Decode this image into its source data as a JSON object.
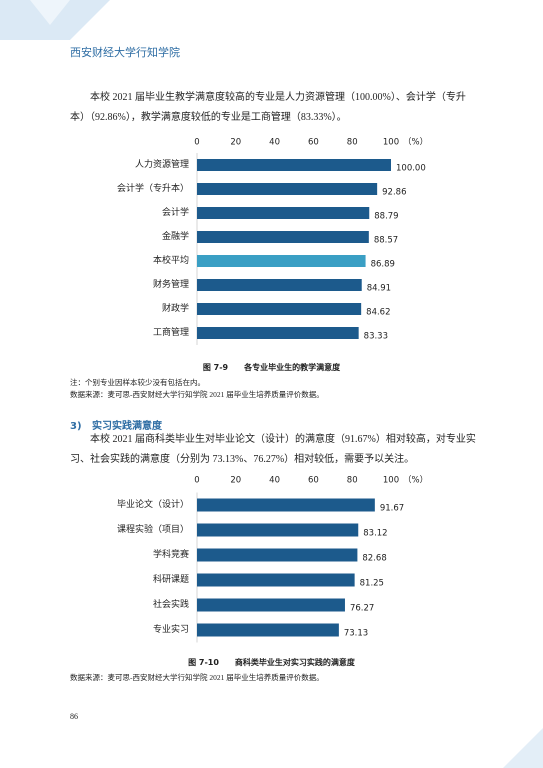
{
  "header": {
    "title": "西安财经大学行知学院"
  },
  "paragraphs": [
    "本校 2021 届毕业生教学满意度较高的专业是人力资源管理（100.00%）、会计学（专升本）（92.86%），教学满意度较低的专业是工商管理（83.33%）。",
    "本校 2021 届商科类毕业生对毕业论文（设计）的满意度（91.67%）相对较高，对专业实习、社会实践的满意度（分别为 73.13%、76.27%）相对较低，需要予以关注。"
  ],
  "section": {
    "number": "3)",
    "title": "实习实践满意度"
  },
  "notes": [
    "注：个别专业因样本较少没有包括在内。",
    "数据来源：麦可思-西安财经大学行知学院 2021 届毕业生培养质量评价数据。",
    "数据来源：麦可思-西安财经大学行知学院 2021 届毕业生培养质量评价数据。"
  ],
  "page_number": "86",
  "chart_data": [
    {
      "type": "barh",
      "caption": "图 7-9　　各专业毕业生的教学满意度",
      "unit": "（%）",
      "categories": [
        "人力资源管理",
        "会计学（专升本）",
        "会计学",
        "金融学",
        "本校平均",
        "财务管理",
        "财政学",
        "工商管理"
      ],
      "values": [
        100,
        92.86,
        88.79,
        88.57,
        86.89,
        84.91,
        84.62,
        83.33
      ],
      "value_labels": [
        "100.00",
        "92.86",
        "88.79",
        "88.57",
        "86.89",
        "84.91",
        "84.62",
        "83.33"
      ],
      "colors": [
        "#1c5a8c",
        "#1c5a8c",
        "#1c5a8c",
        "#1c5a8c",
        "#3a9fc4",
        "#1c5a8c",
        "#1c5a8c",
        "#1c5a8c"
      ],
      "xlim": [
        0,
        100
      ],
      "xticks": [
        0,
        20,
        40,
        60,
        80,
        100
      ]
    },
    {
      "type": "barh",
      "caption": "图 7-10　　商科类毕业生对实习实践的满意度",
      "unit": "（%）",
      "categories": [
        "毕业论文（设计）",
        "课程实验（项目）",
        "学科竞赛",
        "科研课题",
        "社会实践",
        "专业实习"
      ],
      "values": [
        91.67,
        83.12,
        82.68,
        81.25,
        76.27,
        73.13
      ],
      "colors": [
        "#1c5a8c",
        "#1c5a8c",
        "#1c5a8c",
        "#1c5a8c",
        "#1c5a8c",
        "#1c5a8c"
      ],
      "xlim": [
        0,
        100
      ],
      "xticks": [
        0,
        20,
        40,
        60,
        80,
        100
      ]
    }
  ]
}
